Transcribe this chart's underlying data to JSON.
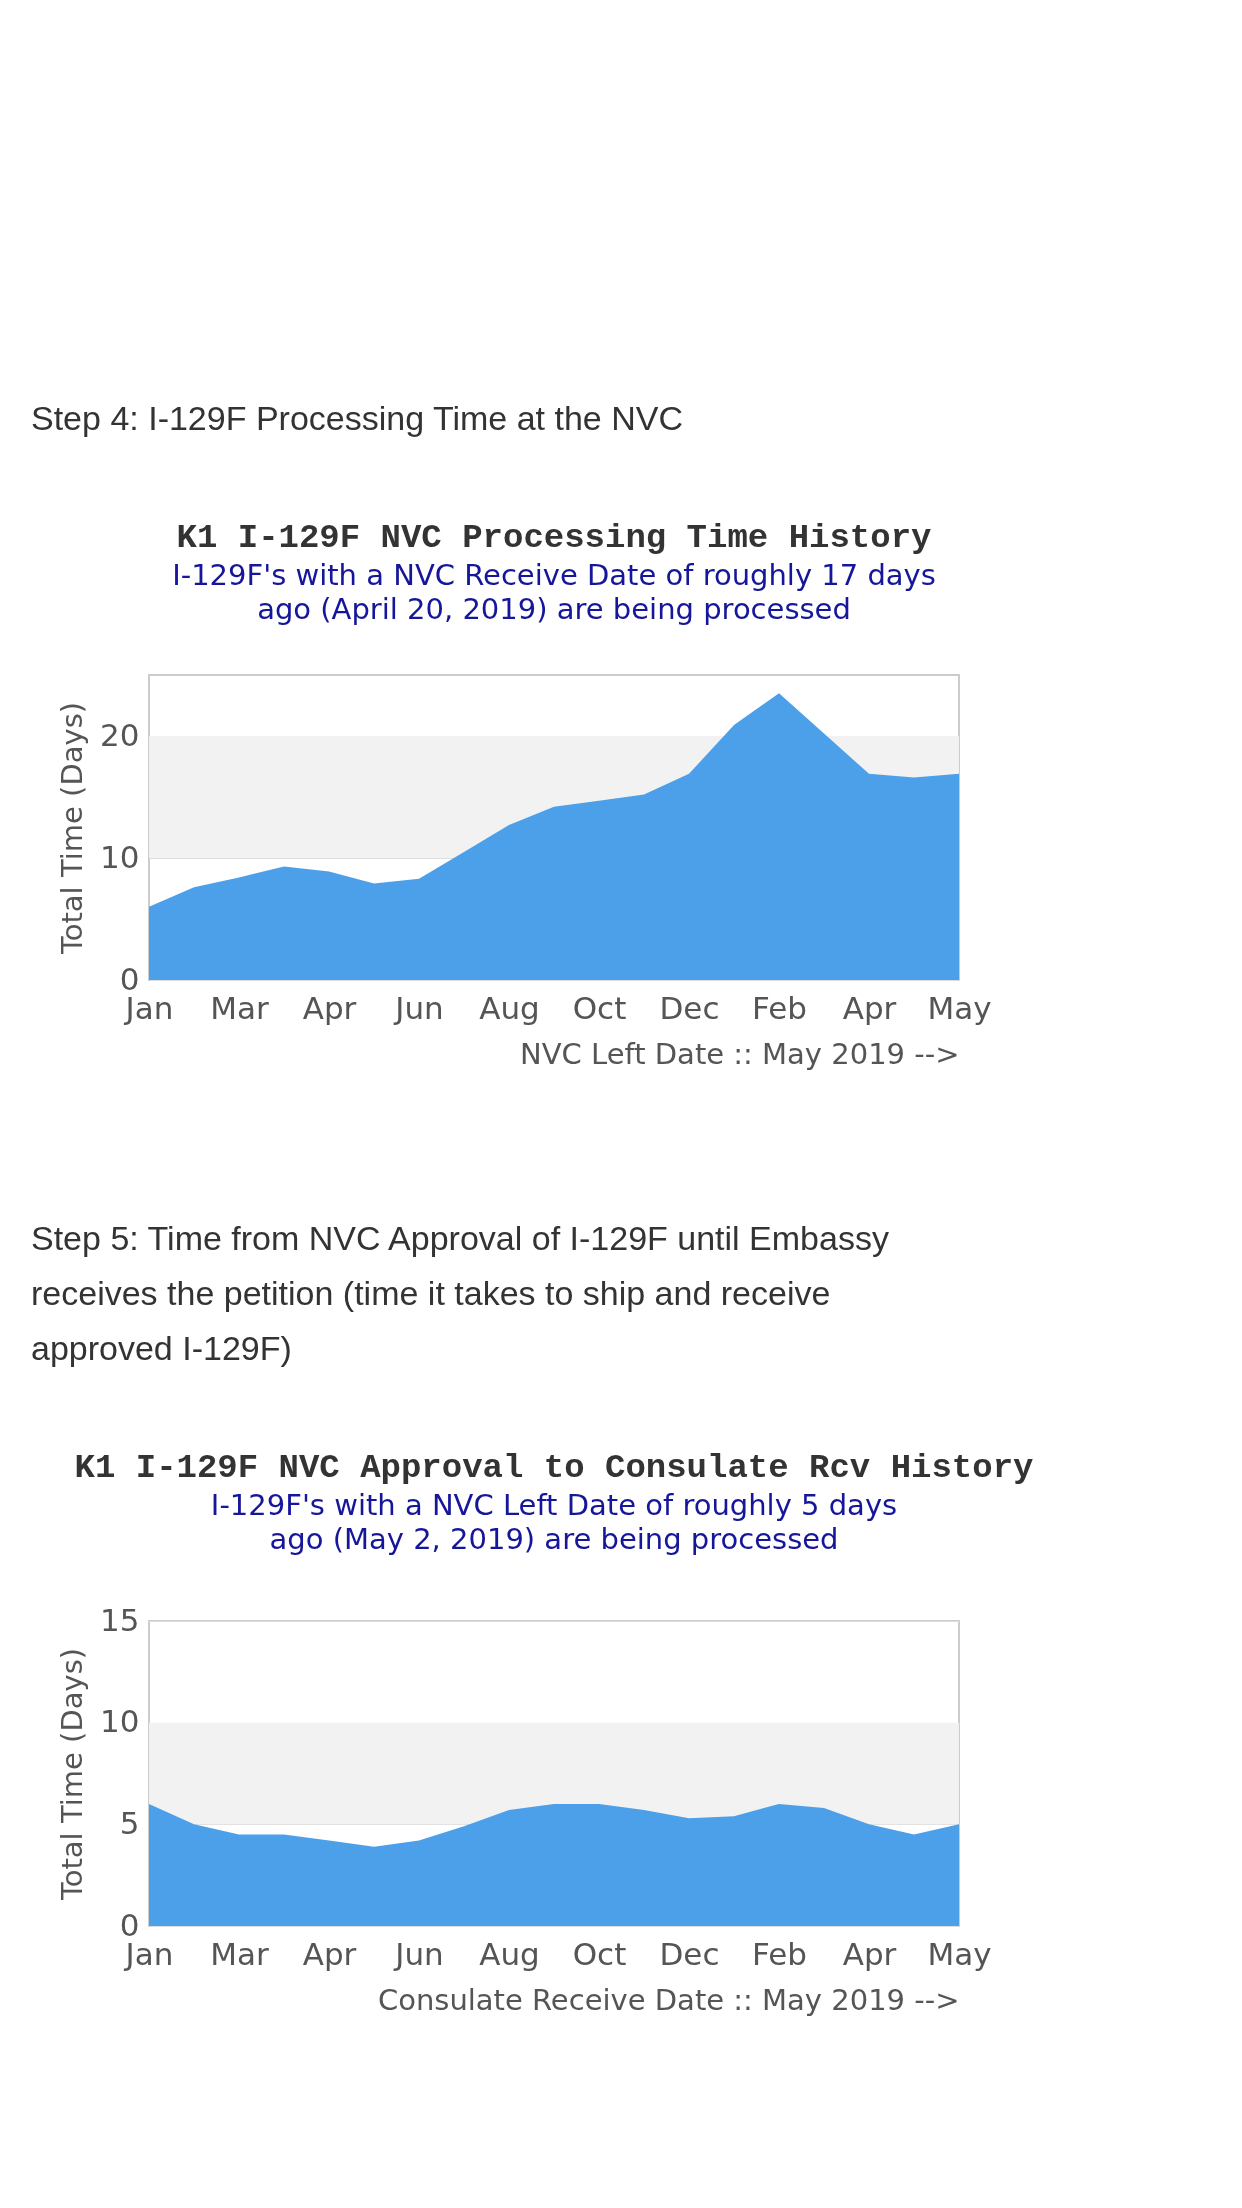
{
  "chart_data": [
    {
      "type": "area",
      "title": "K1 I-129F NVC Processing Time History",
      "subtitle": "I-129F's with a NVC Receive Date of roughly 17 days\nago (April 20, 2019) are being processed",
      "xlabel": "NVC Left Date :: May 2019 -->",
      "ylabel": "Total Time (Days)",
      "annotations": [
        "Step 4: I-129F Processing Time at the NVC"
      ],
      "categories": [
        "Jan",
        null,
        "Mar",
        null,
        "Apr",
        null,
        "Jun",
        null,
        "Aug",
        null,
        "Oct",
        null,
        "Dec",
        null,
        "Feb",
        null,
        "Apr",
        null,
        "May"
      ],
      "values": [
        6.0,
        7.6,
        8.4,
        9.3,
        8.9,
        7.9,
        8.3,
        10.5,
        12.7,
        14.2,
        14.7,
        15.2,
        16.9,
        20.9,
        23.5,
        20.2,
        16.9,
        16.6,
        16.9
      ],
      "color": "#4c9fe9",
      "ylim": [
        0,
        25
      ],
      "yticks": [
        0,
        10,
        20
      ],
      "grid": "y",
      "bands": [
        {
          "axis": "y",
          "from": 10,
          "to": 20,
          "color": "#f2f2f2"
        }
      ]
    },
    {
      "type": "area",
      "title": "K1 I-129F NVC Approval to Consulate Rcv History",
      "subtitle": "I-129F's with a NVC Left Date of roughly 5 days\nago (May 2, 2019) are being processed",
      "xlabel": "Consulate Receive Date :: May 2019 -->",
      "ylabel": "Total Time (Days)",
      "annotations": [
        "Step 5: Time from NVC Approval of I-129F until Embassy receives the petition (time it takes to ship and receive approved I-129F)"
      ],
      "categories": [
        "Jan",
        null,
        "Mar",
        null,
        "Apr",
        null,
        "Jun",
        null,
        "Aug",
        null,
        "Oct",
        null,
        "Dec",
        null,
        "Feb",
        null,
        "Apr",
        null,
        "May"
      ],
      "values": [
        6.0,
        5.0,
        4.5,
        4.5,
        4.2,
        3.9,
        4.2,
        4.9,
        5.7,
        6.0,
        6.0,
        5.7,
        5.3,
        5.4,
        6.0,
        5.8,
        5.0,
        4.5,
        5.0
      ],
      "color": "#4c9fe9",
      "ylim": [
        0,
        15
      ],
      "yticks": [
        0,
        5,
        10,
        15
      ],
      "grid": "y",
      "bands": [
        {
          "axis": "y",
          "from": 5,
          "to": 10,
          "color": "#f2f2f2"
        }
      ]
    }
  ]
}
